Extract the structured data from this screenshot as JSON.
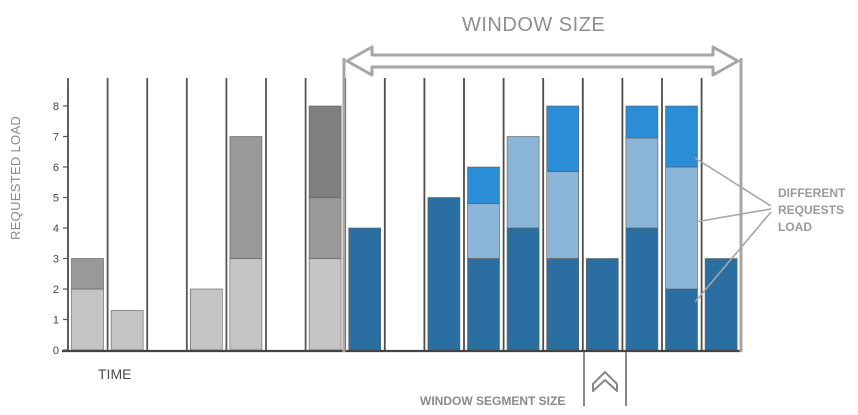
{
  "chart_data": {
    "type": "bar",
    "stacked": true,
    "ylabel": "REQUESTED LOAD",
    "xlabel": "TIME",
    "y_ticks": [
      "0",
      "1",
      "2",
      "3",
      "4",
      "5",
      "6",
      "7",
      "8"
    ],
    "ylim": [
      0,
      8.5
    ],
    "slot_count": 17,
    "bars": [
      {
        "slot": 0,
        "segments": [
          {
            "value": 2,
            "color": "#c4c4c4"
          },
          {
            "value": 1,
            "color": "#999999"
          }
        ]
      },
      {
        "slot": 1,
        "segments": [
          {
            "value": 1.3,
            "color": "#c4c4c4"
          }
        ]
      },
      {
        "slot": 3,
        "segments": [
          {
            "value": 2,
            "color": "#c4c4c4"
          }
        ]
      },
      {
        "slot": 4,
        "segments": [
          {
            "value": 3,
            "color": "#c4c4c4"
          },
          {
            "value": 4,
            "color": "#999999"
          }
        ]
      },
      {
        "slot": 6,
        "segments": [
          {
            "value": 3,
            "color": "#c4c4c4"
          },
          {
            "value": 2,
            "color": "#999999"
          },
          {
            "value": 3,
            "color": "#7f7f7f"
          }
        ]
      },
      {
        "slot": 7,
        "segments": [
          {
            "value": 4,
            "color": "#2a6ea2"
          }
        ]
      },
      {
        "slot": 9,
        "segments": [
          {
            "value": 5,
            "color": "#2a6ea2"
          }
        ]
      },
      {
        "slot": 10,
        "segments": [
          {
            "value": 3,
            "color": "#2a6ea2"
          },
          {
            "value": 1.8,
            "color": "#8bb5d6"
          },
          {
            "value": 1.2,
            "color": "#2a8dd5"
          }
        ]
      },
      {
        "slot": 11,
        "segments": [
          {
            "value": 4,
            "color": "#2a6ea2"
          },
          {
            "value": 3,
            "color": "#8bb5d6"
          }
        ]
      },
      {
        "slot": 12,
        "segments": [
          {
            "value": 3,
            "color": "#2a6ea2"
          },
          {
            "value": 2.85,
            "color": "#8bb5d6"
          },
          {
            "value": 2.15,
            "color": "#2a8dd5"
          }
        ]
      },
      {
        "slot": 13,
        "segments": [
          {
            "value": 3,
            "color": "#2a6ea2"
          }
        ]
      },
      {
        "slot": 14,
        "segments": [
          {
            "value": 4,
            "color": "#2a6ea2"
          },
          {
            "value": 2.95,
            "color": "#8bb5d6"
          },
          {
            "value": 1.05,
            "color": "#2a8dd5"
          }
        ]
      },
      {
        "slot": 15,
        "segments": [
          {
            "value": 2,
            "color": "#2a6ea2"
          },
          {
            "value": 4,
            "color": "#8bb5d6"
          },
          {
            "value": 2,
            "color": "#2a8dd5"
          }
        ]
      },
      {
        "slot": 16,
        "segments": [
          {
            "value": 3,
            "color": "#2a6ea2"
          }
        ]
      }
    ],
    "annotations": {
      "window_size": "WINDOW SIZE",
      "different_requests_load": "DIFFERENT REQUESTS LOAD",
      "window_segment_size": "WINDOW SEGMENT SIZE"
    },
    "colors": {
      "axis": "#555555",
      "divider": "#555555",
      "window_frame": "#a6a6a6",
      "annotation": "#a6a6a6"
    }
  }
}
